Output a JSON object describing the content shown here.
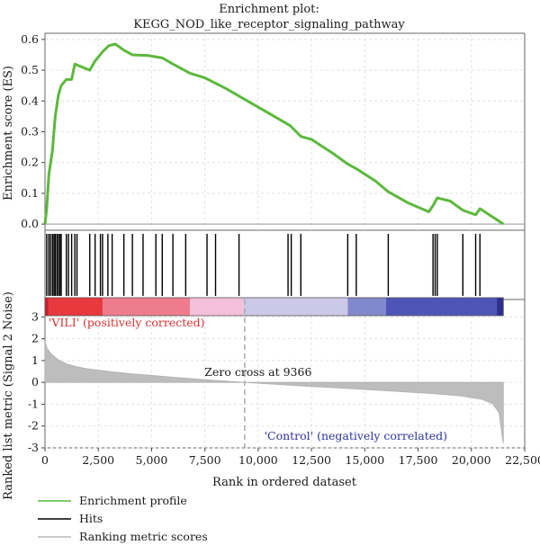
{
  "chart_data": {
    "type": "line",
    "title_line1": "Enrichment plot:",
    "title_line2": "KEGG_NOD_like_receptor_signaling_pathway",
    "xlabel": "Rank in ordered dataset",
    "ylabel_es": "Enrichment score (ES)",
    "ylabel_metric": "Ranked list metric (Signal 2 Noise)",
    "xlim": [
      0,
      22500
    ],
    "x_ticks": [
      0,
      2500,
      5000,
      7500,
      10000,
      12500,
      15000,
      17500,
      20000,
      22500
    ],
    "x_tick_labels": [
      "0",
      "2,500",
      "5,000",
      "7,500",
      "10,000",
      "12,500",
      "15,000",
      "17,500",
      "20,000",
      "22,500"
    ],
    "es_ylim": [
      -0.02,
      0.62
    ],
    "es_ticks": [
      0.0,
      0.1,
      0.2,
      0.3,
      0.4,
      0.5,
      0.6
    ],
    "es_tick_labels": [
      "0.0",
      "0.1",
      "0.2",
      "0.3",
      "0.4",
      "0.5",
      "0.6"
    ],
    "metric_ylim": [
      -3,
      3.8
    ],
    "metric_ticks": [
      3,
      2,
      1,
      0,
      -1,
      -2,
      -3
    ],
    "metric_tick_labels": [
      "3",
      "2",
      "1",
      "0",
      "-1",
      "-2",
      "-3"
    ],
    "dataset_size": 21500,
    "zero_cross": 9366,
    "zero_cross_label": "Zero cross at 9366",
    "positive_label": "'VILI' (positively corrected)",
    "negative_label": "'Control' (negatively correlated)",
    "grid": true,
    "legend_position": "bottom-left",
    "legend": [
      {
        "label": "Enrichment profile",
        "color": "#5cb83c"
      },
      {
        "label": "Hits",
        "color": "#000000"
      },
      {
        "label": "Ranking metric scores",
        "color": "#b8b8b8"
      }
    ],
    "hits": [
      80,
      180,
      260,
      350,
      420,
      480,
      560,
      630,
      700,
      760,
      1000,
      1100,
      1250,
      1400,
      1500,
      2100,
      2350,
      2600,
      2700,
      2950,
      3150,
      3700,
      4100,
      4600,
      5200,
      5500,
      6000,
      6600,
      7600,
      8000,
      9100,
      11400,
      11550,
      12000,
      14200,
      14600,
      16100,
      18200,
      18300,
      18400,
      19600,
      20200,
      20400
    ],
    "es_curve": [
      [
        0,
        0.0
      ],
      [
        80,
        0.05
      ],
      [
        180,
        0.16
      ],
      [
        350,
        0.24
      ],
      [
        480,
        0.35
      ],
      [
        630,
        0.42
      ],
      [
        760,
        0.45
      ],
      [
        1000,
        0.47
      ],
      [
        1250,
        0.47
      ],
      [
        1400,
        0.52
      ],
      [
        2100,
        0.5
      ],
      [
        2350,
        0.53
      ],
      [
        2700,
        0.56
      ],
      [
        3000,
        0.58
      ],
      [
        3300,
        0.585
      ],
      [
        3700,
        0.565
      ],
      [
        4100,
        0.55
      ],
      [
        4800,
        0.548
      ],
      [
        5500,
        0.54
      ],
      [
        6000,
        0.52
      ],
      [
        6800,
        0.49
      ],
      [
        7500,
        0.475
      ],
      [
        8500,
        0.44
      ],
      [
        9500,
        0.4
      ],
      [
        10500,
        0.36
      ],
      [
        11500,
        0.32
      ],
      [
        12000,
        0.285
      ],
      [
        12500,
        0.275
      ],
      [
        13500,
        0.23
      ],
      [
        14200,
        0.195
      ],
      [
        14600,
        0.18
      ],
      [
        15500,
        0.14
      ],
      [
        16100,
        0.105
      ],
      [
        17000,
        0.07
      ],
      [
        18000,
        0.04
      ],
      [
        18200,
        0.06
      ],
      [
        18400,
        0.085
      ],
      [
        19000,
        0.075
      ],
      [
        19600,
        0.045
      ],
      [
        20200,
        0.03
      ],
      [
        20400,
        0.05
      ],
      [
        21500,
        0.0
      ]
    ],
    "metric_curve": [
      [
        0,
        1.9
      ],
      [
        100,
        1.55
      ],
      [
        300,
        1.3
      ],
      [
        600,
        1.05
      ],
      [
        1000,
        0.85
      ],
      [
        1500,
        0.72
      ],
      [
        2000,
        0.62
      ],
      [
        3000,
        0.5
      ],
      [
        4000,
        0.4
      ],
      [
        5000,
        0.32
      ],
      [
        6000,
        0.24
      ],
      [
        7000,
        0.16
      ],
      [
        8000,
        0.09
      ],
      [
        9366,
        0.0
      ],
      [
        10500,
        -0.07
      ],
      [
        12000,
        -0.16
      ],
      [
        14000,
        -0.27
      ],
      [
        16000,
        -0.38
      ],
      [
        18000,
        -0.5
      ],
      [
        19500,
        -0.62
      ],
      [
        20500,
        -0.78
      ],
      [
        21000,
        -0.98
      ],
      [
        21300,
        -1.4
      ],
      [
        21450,
        -2.5
      ],
      [
        21500,
        -2.8
      ]
    ],
    "color_bar": [
      {
        "from": 0,
        "to": 2700,
        "color": "#e8393f"
      },
      {
        "from": 2700,
        "to": 6800,
        "color": "#ee7c8c"
      },
      {
        "from": 6800,
        "to": 9300,
        "color": "#f4bfdb"
      },
      {
        "from": 9300,
        "to": 14200,
        "color": "#ccc9e8"
      },
      {
        "from": 14200,
        "to": 16000,
        "color": "#8288cc"
      },
      {
        "from": 16000,
        "to": 21500,
        "color": "#4f55b8"
      }
    ]
  }
}
